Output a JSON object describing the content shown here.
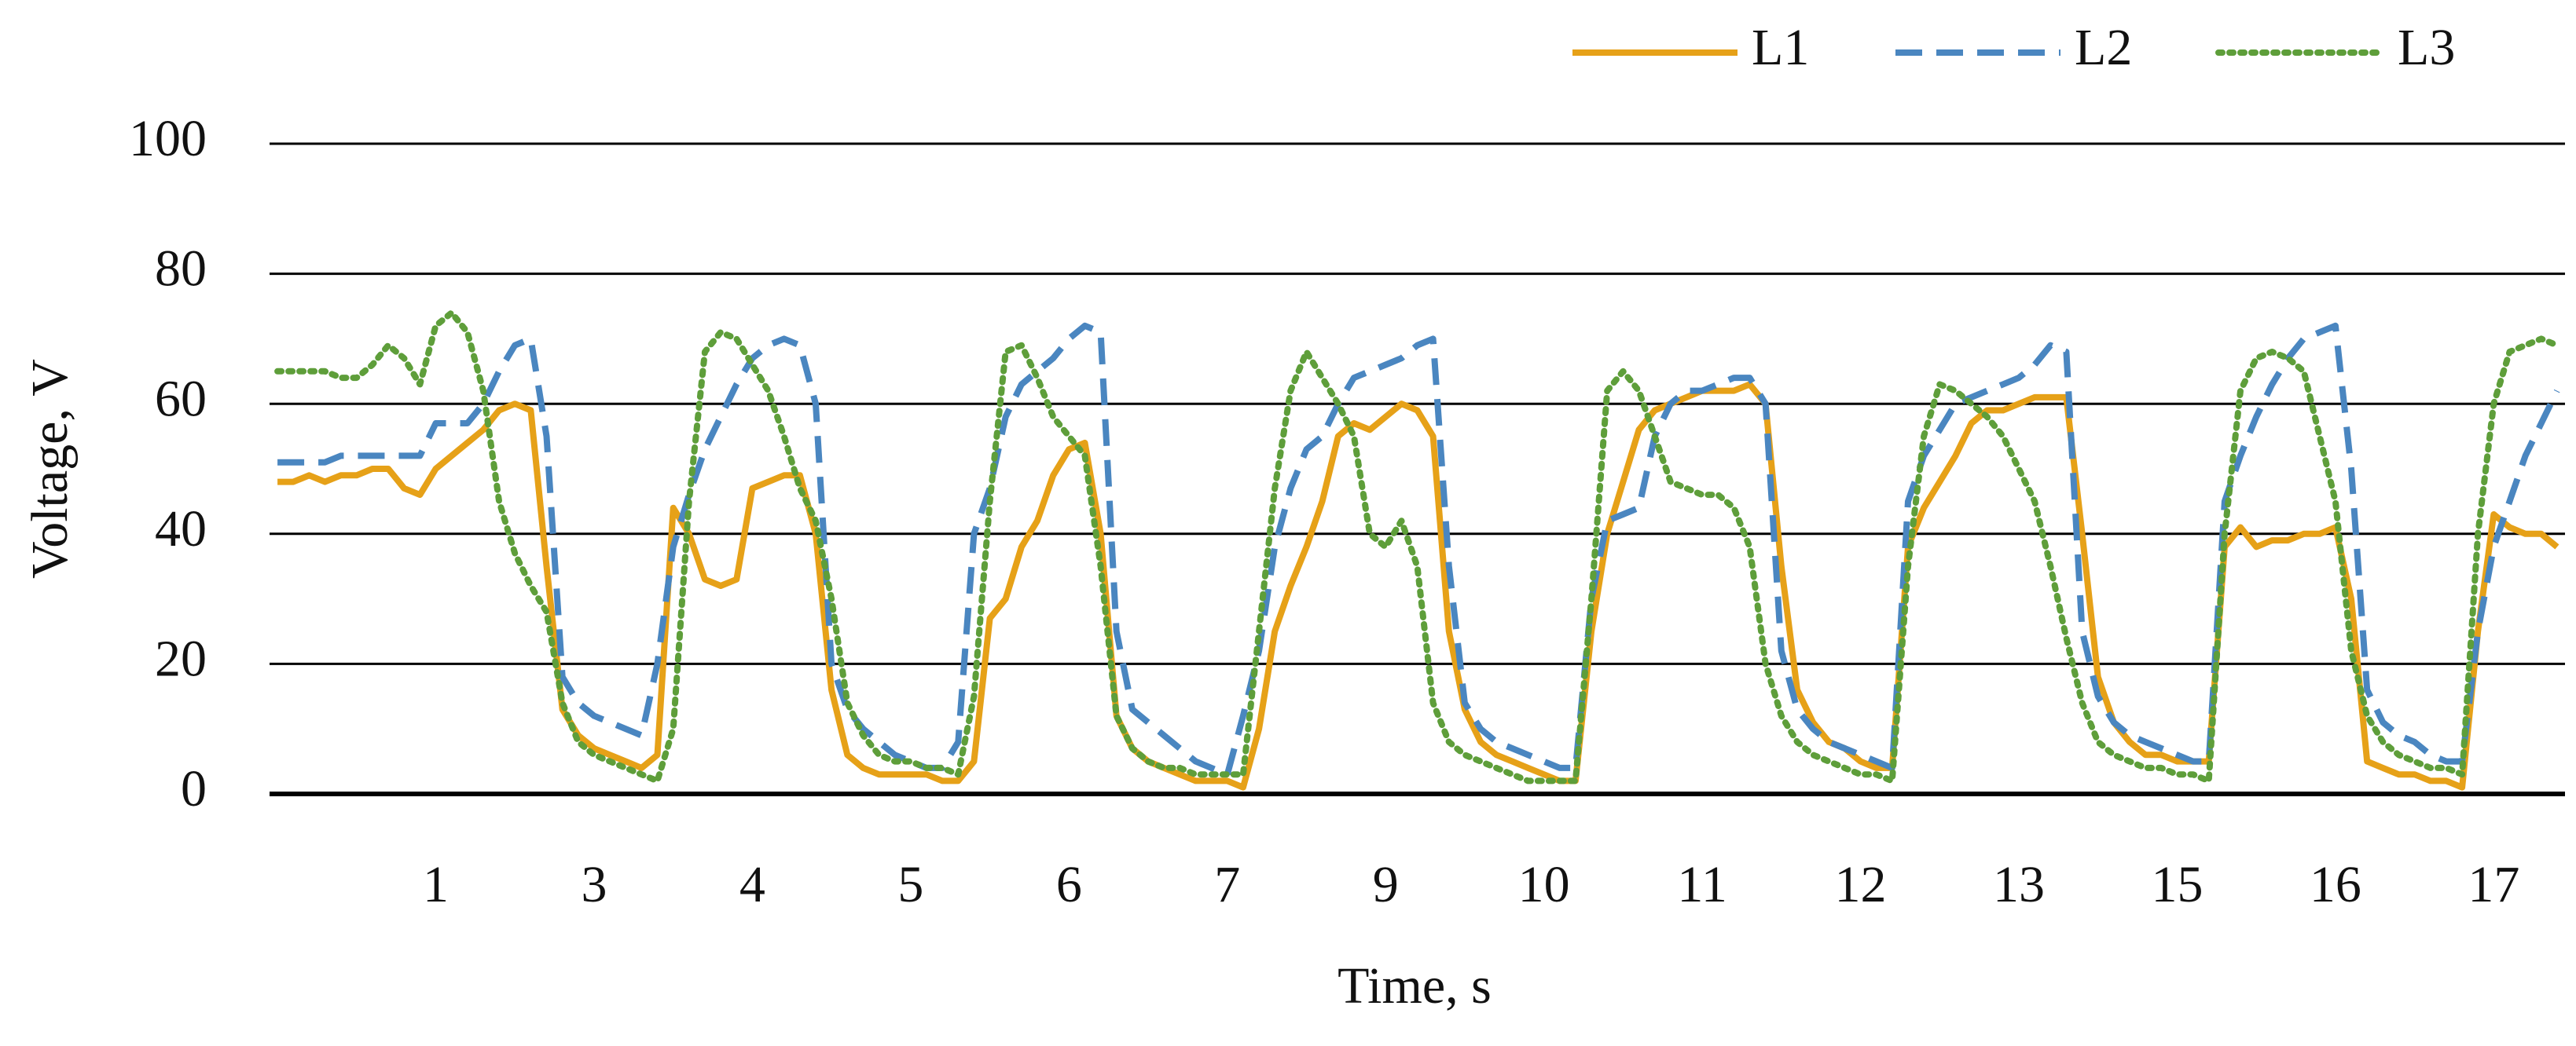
{
  "chart_data": {
    "type": "line",
    "x_label": "Time, s",
    "y_label": "Voltage, V",
    "categories": [
      null,
      null,
      null,
      null,
      null,
      null,
      null,
      null,
      null,
      null,
      "1",
      null,
      null,
      null,
      null,
      null,
      null,
      null,
      null,
      null,
      "3",
      null,
      null,
      null,
      null,
      null,
      null,
      null,
      null,
      null,
      "4",
      null,
      null,
      null,
      null,
      null,
      null,
      null,
      null,
      null,
      "5",
      null,
      null,
      null,
      null,
      null,
      null,
      null,
      null,
      null,
      "6",
      null,
      null,
      null,
      null,
      null,
      null,
      null,
      null,
      null,
      "7",
      null,
      null,
      null,
      null,
      null,
      null,
      null,
      null,
      null,
      "9",
      null,
      null,
      null,
      null,
      null,
      null,
      null,
      null,
      null,
      "10",
      null,
      null,
      null,
      null,
      null,
      null,
      null,
      null,
      null,
      "11",
      null,
      null,
      null,
      null,
      null,
      null,
      null,
      null,
      null,
      "12",
      null,
      null,
      null,
      null,
      null,
      null,
      null,
      null,
      null,
      "13",
      null,
      null,
      null,
      null,
      null,
      null,
      null,
      null,
      null,
      "15",
      null,
      null,
      null,
      null,
      null,
      null,
      null,
      null,
      null,
      "16",
      null,
      null,
      null,
      null,
      null,
      null,
      null,
      null,
      null,
      "17",
      null,
      null,
      null,
      null
    ],
    "series": [
      {
        "name": "L1",
        "color": "#e6a118",
        "style": "solid",
        "values": [
          48,
          48,
          49,
          48,
          49,
          49,
          50,
          50,
          47,
          46,
          50,
          52,
          54,
          56,
          59,
          60,
          59,
          35,
          13,
          9,
          7,
          6,
          5,
          4,
          6,
          44,
          40,
          33,
          32,
          33,
          47,
          48,
          49,
          49,
          40,
          16,
          6,
          4,
          3,
          3,
          3,
          3,
          2,
          2,
          5,
          27,
          30,
          38,
          42,
          49,
          53,
          54,
          40,
          12,
          7,
          5,
          4,
          3,
          2,
          2,
          2,
          1,
          10,
          25,
          32,
          38,
          45,
          55,
          57,
          56,
          58,
          60,
          59,
          55,
          25,
          13,
          8,
          6,
          5,
          4,
          3,
          2,
          2,
          25,
          40,
          48,
          56,
          59,
          60,
          61,
          62,
          62,
          62,
          63,
          60,
          35,
          16,
          11,
          8,
          7,
          5,
          4,
          4,
          38,
          44,
          48,
          52,
          57,
          59,
          59,
          60,
          61,
          61,
          61,
          40,
          18,
          11,
          8,
          6,
          6,
          5,
          5,
          5,
          38,
          41,
          38,
          39,
          39,
          40,
          40,
          41,
          30,
          5,
          4,
          3,
          3,
          2,
          2,
          1,
          25,
          43,
          41,
          40,
          40,
          38
        ]
      },
      {
        "name": "L2",
        "color": "#4a86c0",
        "style": "dashed",
        "values": [
          51,
          51,
          51,
          51,
          52,
          52,
          52,
          52,
          52,
          52,
          57,
          57,
          57,
          60,
          65,
          69,
          70,
          55,
          18,
          14,
          12,
          11,
          10,
          9,
          20,
          38,
          46,
          53,
          58,
          63,
          67,
          69,
          70,
          69,
          60,
          20,
          13,
          10,
          8,
          6,
          5,
          4,
          4,
          8,
          40,
          47,
          58,
          63,
          65,
          67,
          70,
          72,
          71,
          25,
          13,
          11,
          9,
          7,
          5,
          4,
          3,
          12,
          22,
          38,
          47,
          53,
          55,
          60,
          64,
          65,
          66,
          67,
          69,
          70,
          35,
          14,
          10,
          8,
          7,
          6,
          5,
          4,
          4,
          30,
          42,
          43,
          44,
          55,
          60,
          62,
          62,
          63,
          64,
          64,
          60,
          22,
          13,
          10,
          8,
          7,
          6,
          5,
          4,
          45,
          52,
          56,
          60,
          61,
          62,
          63,
          64,
          66,
          69,
          68,
          25,
          15,
          11,
          9,
          8,
          7,
          6,
          5,
          5,
          45,
          52,
          58,
          63,
          67,
          70,
          71,
          72,
          50,
          16,
          11,
          9,
          8,
          6,
          5,
          5,
          25,
          38,
          45,
          52,
          57,
          62
        ]
      },
      {
        "name": "L3",
        "color": "#5e9e3a",
        "style": "dotted",
        "values": [
          65,
          65,
          65,
          65,
          64,
          64,
          66,
          69,
          67,
          63,
          72,
          74,
          71,
          62,
          45,
          37,
          32,
          28,
          14,
          8,
          6,
          5,
          4,
          3,
          2,
          10,
          45,
          68,
          71,
          70,
          66,
          62,
          55,
          47,
          42,
          30,
          14,
          9,
          6,
          5,
          5,
          4,
          4,
          3,
          15,
          45,
          68,
          69,
          64,
          58,
          55,
          52,
          35,
          12,
          7,
          5,
          4,
          4,
          3,
          3,
          3,
          3,
          25,
          47,
          62,
          68,
          64,
          60,
          55,
          40,
          38,
          42,
          35,
          14,
          8,
          6,
          5,
          4,
          3,
          2,
          2,
          2,
          2,
          30,
          62,
          65,
          62,
          55,
          48,
          47,
          46,
          46,
          44,
          38,
          20,
          12,
          8,
          6,
          5,
          4,
          3,
          3,
          2,
          35,
          55,
          63,
          62,
          60,
          58,
          55,
          50,
          45,
          35,
          24,
          14,
          8,
          6,
          5,
          4,
          4,
          3,
          3,
          2,
          40,
          62,
          67,
          68,
          67,
          65,
          55,
          45,
          22,
          12,
          8,
          6,
          5,
          4,
          4,
          3,
          40,
          60,
          68,
          69,
          70,
          69
        ]
      }
    ],
    "ylim": [
      0,
      100
    ],
    "yticks": [
      0,
      20,
      40,
      60,
      80,
      100
    ],
    "grid": true,
    "legend": "top-right"
  }
}
